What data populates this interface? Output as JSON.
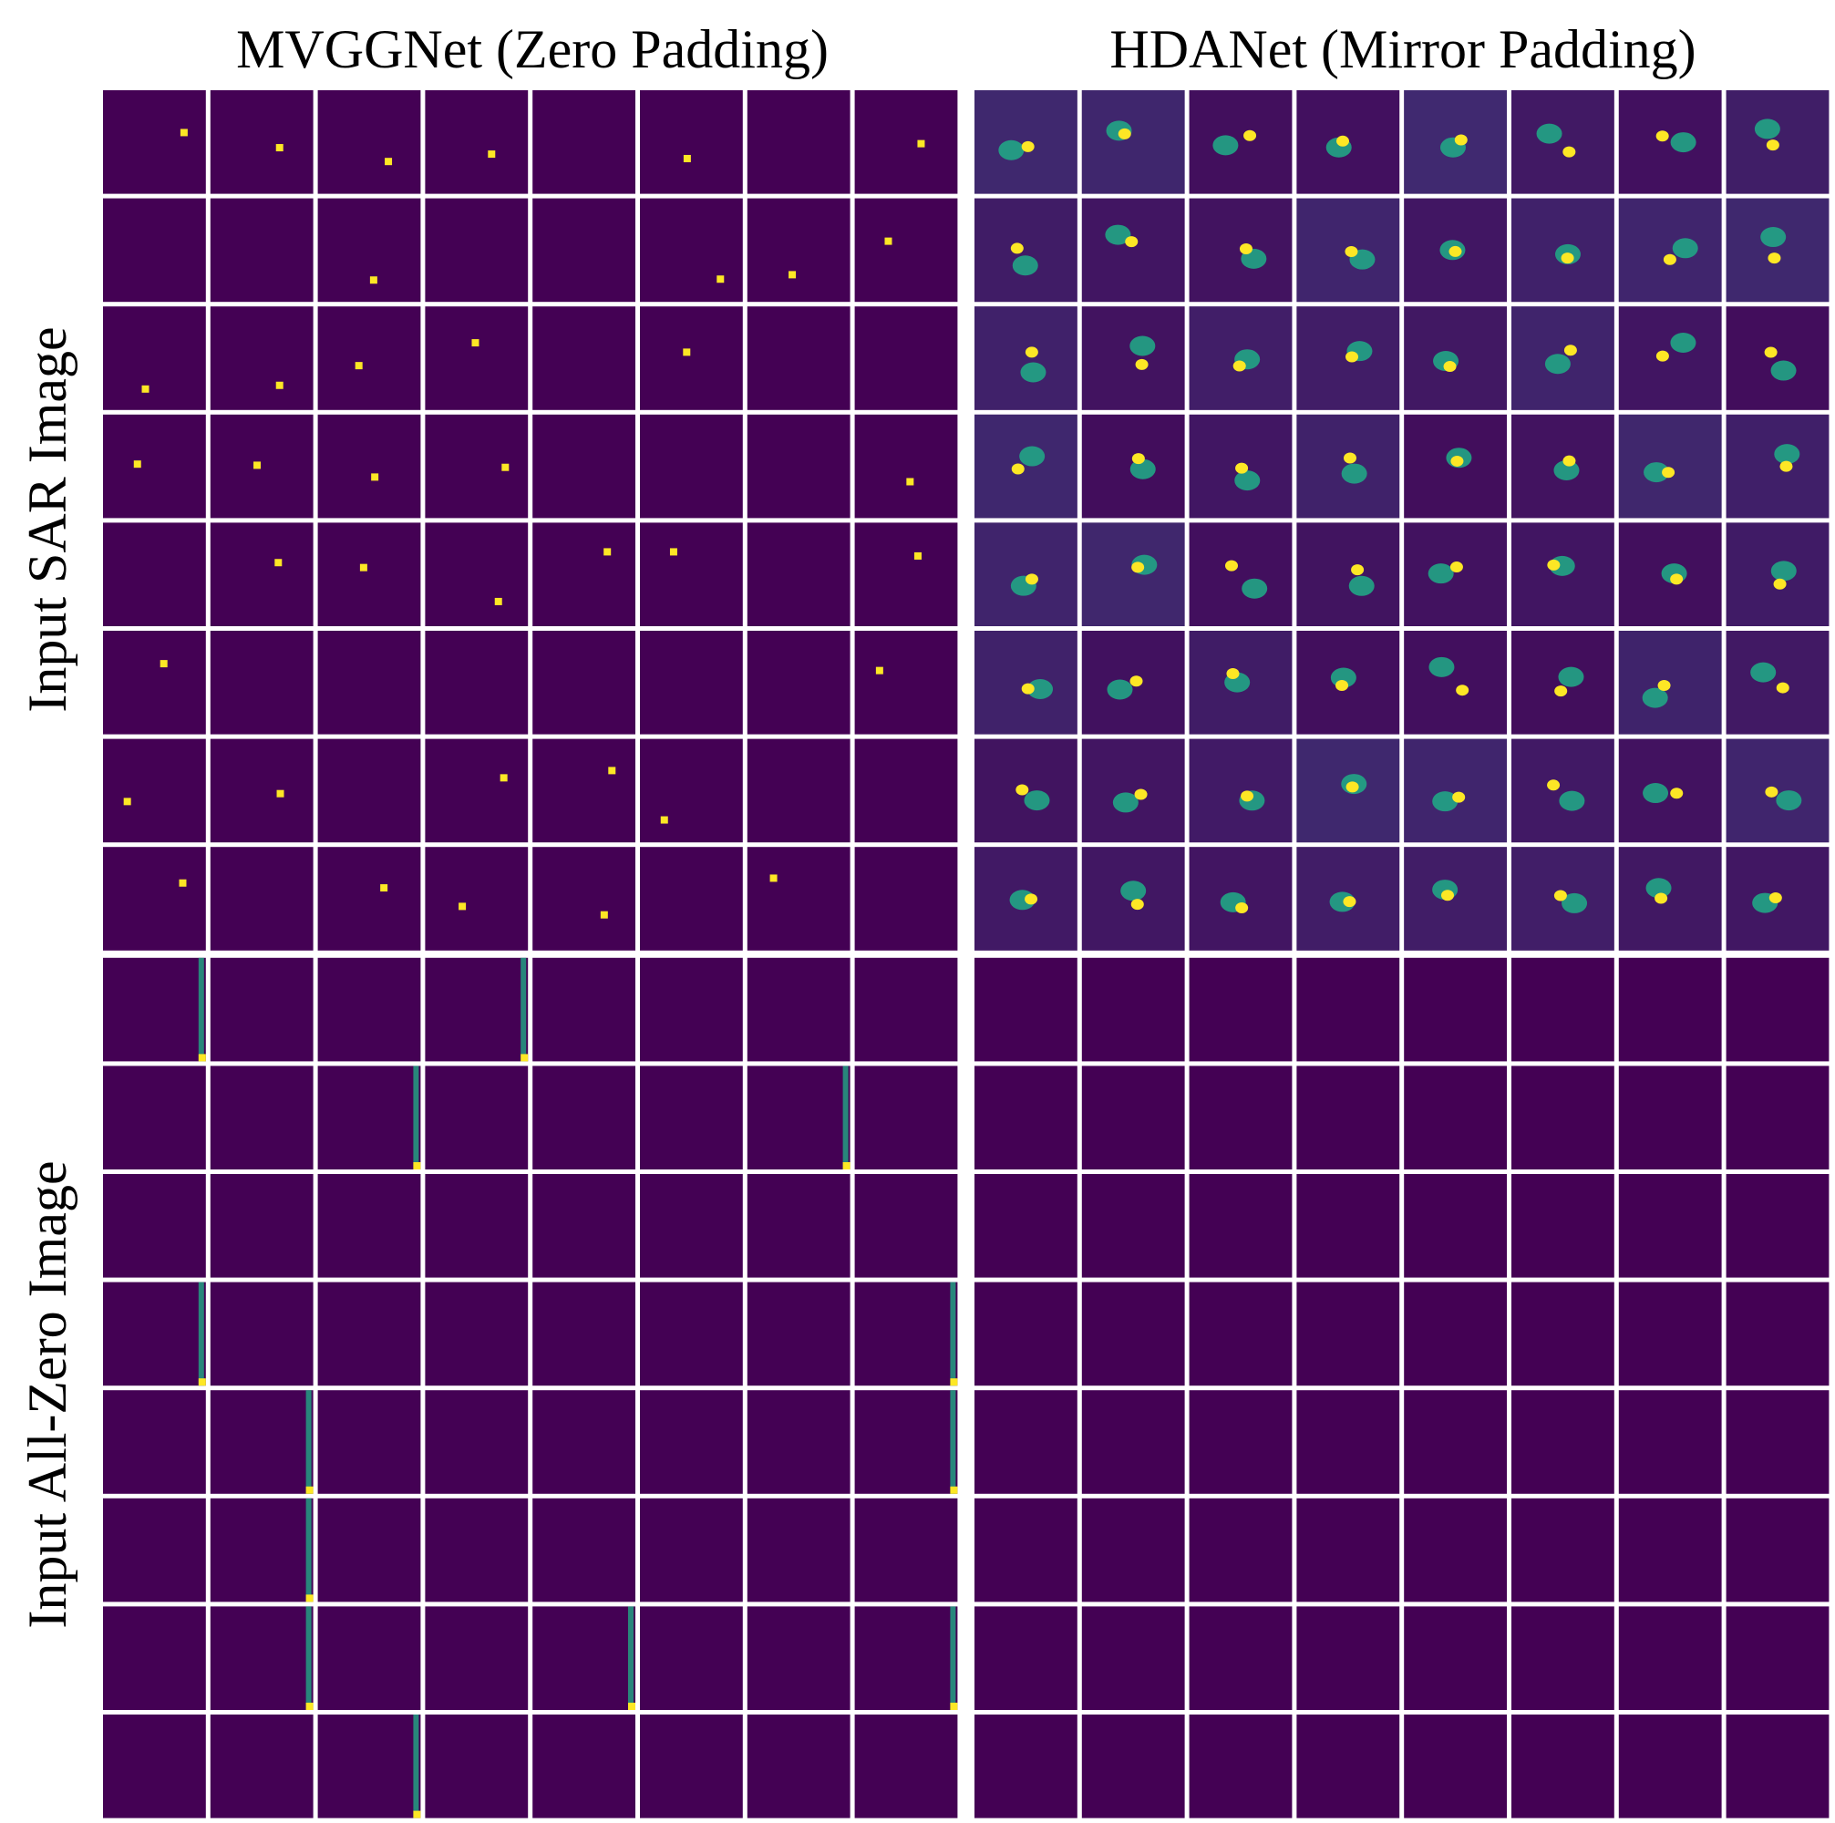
{
  "titles": [
    "MVGGNet (Zero Padding)",
    "HDANet (Mirror Padding)"
  ],
  "row_labels": [
    "Input SAR Image",
    "Input All-Zero Image"
  ]
}
